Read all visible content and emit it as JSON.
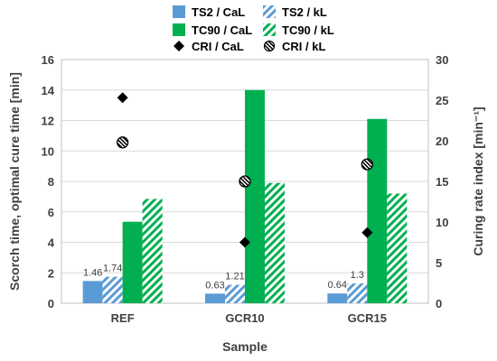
{
  "chart_data": {
    "type": "bar",
    "categories": [
      "REF",
      "GCR10",
      "GCR15"
    ],
    "xlabel": "Sample",
    "ylabel": "Scorch time, optimal cure time [min]",
    "y2label": "Curing rate index [min⁻¹]",
    "ylim": [
      0,
      16
    ],
    "y2lim": [
      0,
      30
    ],
    "yticks": [
      "0",
      "2",
      "4",
      "6",
      "8",
      "10",
      "12",
      "14",
      "16"
    ],
    "y2ticks": [
      "0",
      "5",
      "10",
      "15",
      "20",
      "25",
      "30"
    ],
    "grid": true,
    "legend_position": "top",
    "series": [
      {
        "name": "TS2 / CaL",
        "kind": "bar",
        "axis": "left",
        "color": "#5b9bd5",
        "pattern": "solid",
        "values": [
          1.46,
          0.63,
          0.64
        ],
        "labels": [
          "1.46",
          "0.63",
          "0.64"
        ]
      },
      {
        "name": "TS2 / kL",
        "kind": "bar",
        "axis": "left",
        "color": "#5b9bd5",
        "pattern": "hatch",
        "values": [
          1.74,
          1.21,
          1.3
        ],
        "labels": [
          "1.74",
          "1.21",
          "1.3"
        ]
      },
      {
        "name": "TC90 / CaL",
        "kind": "bar",
        "axis": "left",
        "color": "#00b050",
        "pattern": "solid",
        "values": [
          5.35,
          14.0,
          12.1
        ]
      },
      {
        "name": "TC90 / kL",
        "kind": "bar",
        "axis": "left",
        "color": "#00b050",
        "pattern": "hatch",
        "values": [
          6.85,
          7.9,
          7.2
        ]
      },
      {
        "name": "CRI / CaL",
        "kind": "marker",
        "axis": "right",
        "marker": "diamond",
        "color": "#000000",
        "values": [
          25.3,
          7.5,
          8.7
        ]
      },
      {
        "name": "CRI / kL",
        "kind": "marker",
        "axis": "right",
        "marker": "hatched-circle",
        "color": "#000000",
        "values": [
          19.8,
          15.0,
          17.1
        ]
      }
    ]
  }
}
